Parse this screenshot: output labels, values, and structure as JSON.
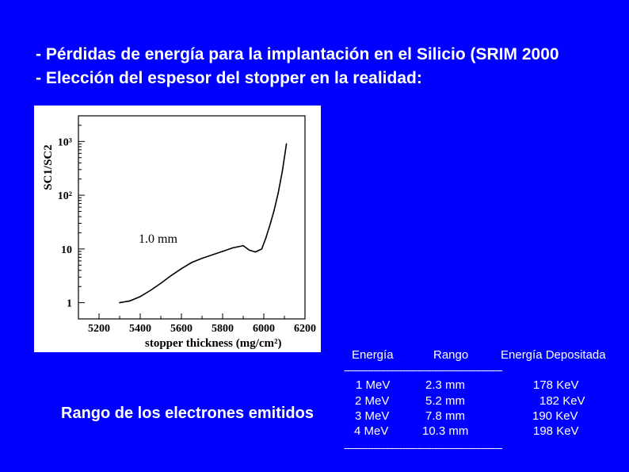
{
  "slide": {
    "line1": "- Pérdidas de energía para la implantación en el Silicio (SRIM 2000",
    "line2": "- Elección del espesor del stopper en la realidad:",
    "electron_label": "Rango de los electrones emitidos"
  },
  "table": {
    "headers": [
      "Energía",
      "Rango",
      "Energía Depositada"
    ],
    "separator": "------------------------------------------------------------",
    "rows": [
      [
        "1 MeV",
        "2.3 mm",
        "178 KeV"
      ],
      [
        "2 MeV",
        "5.2 mm",
        "182 KeV"
      ],
      [
        "3 MeV",
        "7.8 mm",
        "190 KeV"
      ],
      [
        "4 MeV",
        "10.3 mm",
        "198 KeV"
      ]
    ]
  },
  "chart_data": {
    "type": "line",
    "title": "",
    "xlabel": "stopper thickness (mg/cm²)",
    "ylabel": "SC1/SC2",
    "annotation": "1.0 mm",
    "xlim": [
      5100,
      6200
    ],
    "ylim": [
      0.5,
      3000
    ],
    "yscale": "log",
    "xticks": [
      "5200",
      "5400",
      "5600",
      "5800",
      "6000",
      "6200"
    ],
    "yticks": [
      "1",
      "10",
      "10²",
      "10³"
    ],
    "x": [
      5300,
      5350,
      5400,
      5450,
      5500,
      5550,
      5600,
      5650,
      5700,
      5750,
      5800,
      5850,
      5900,
      5930,
      5960,
      5990,
      6010,
      6030,
      6050,
      6070,
      6090,
      6110
    ],
    "y": [
      1.0,
      1.08,
      1.3,
      1.7,
      2.3,
      3.2,
      4.3,
      5.6,
      6.7,
      7.8,
      9.0,
      10.5,
      11.5,
      9.5,
      8.8,
      10.0,
      16,
      28,
      52,
      110,
      280,
      900
    ]
  }
}
